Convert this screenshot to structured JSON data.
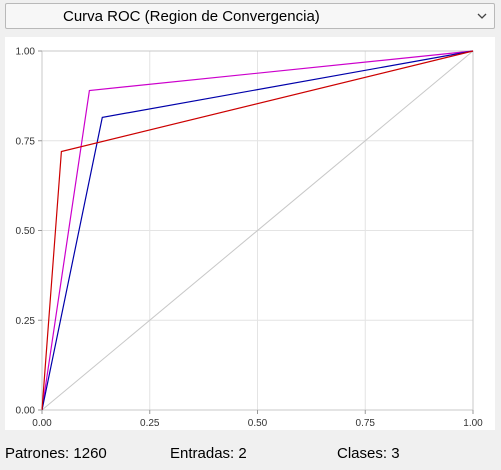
{
  "dropdown": {
    "selected": "Curva ROC (Region de Convergencia)"
  },
  "status": {
    "patrones_label": "Patrones:",
    "patrones_value": "1260",
    "entradas_label": "Entradas:",
    "entradas_value": "2",
    "clases_label": "Clases:",
    "clases_value": "3"
  },
  "chart_data": {
    "type": "line",
    "title": "",
    "xlabel": "",
    "ylabel": "",
    "xlim": [
      0,
      1
    ],
    "ylim": [
      0,
      1
    ],
    "grid": true,
    "x_ticks": [
      "0.00",
      "0.25",
      "0.50",
      "0.75",
      "1.00"
    ],
    "y_ticks": [
      "0.00",
      "0.25",
      "0.50",
      "0.75",
      "1.00"
    ],
    "diagonal": {
      "points": [
        [
          0,
          0
        ],
        [
          1,
          1
        ]
      ],
      "color": "#c8c8c8"
    },
    "series": [
      {
        "color": "#cc00cc",
        "points": [
          [
            0,
            0
          ],
          [
            0.11,
            0.89
          ],
          [
            1,
            1
          ]
        ]
      },
      {
        "color": "#0000aa",
        "points": [
          [
            0,
            0
          ],
          [
            0.14,
            0.815
          ],
          [
            1,
            1
          ]
        ]
      },
      {
        "color": "#cc0000",
        "points": [
          [
            0,
            0
          ],
          [
            0.045,
            0.72
          ],
          [
            1,
            1
          ]
        ]
      }
    ]
  }
}
